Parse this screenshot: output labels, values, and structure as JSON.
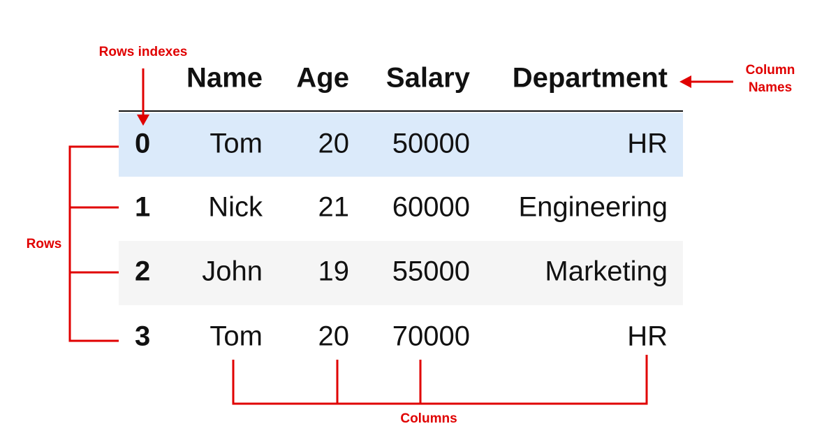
{
  "table": {
    "columns": [
      "Name",
      "Age",
      "Salary",
      "Department"
    ],
    "rows": [
      [
        0,
        "Tom",
        20,
        50000,
        "HR"
      ],
      [
        1,
        "Nick",
        21,
        60000,
        "Engineering"
      ],
      [
        2,
        "John",
        19,
        55000,
        "Marketing"
      ],
      [
        3,
        "Tom",
        20,
        70000,
        "HR"
      ]
    ]
  },
  "annotations": {
    "row_indexes": "Rows indexes",
    "column_names": "Column Names",
    "rows": "Rows",
    "columns": "Columns"
  }
}
